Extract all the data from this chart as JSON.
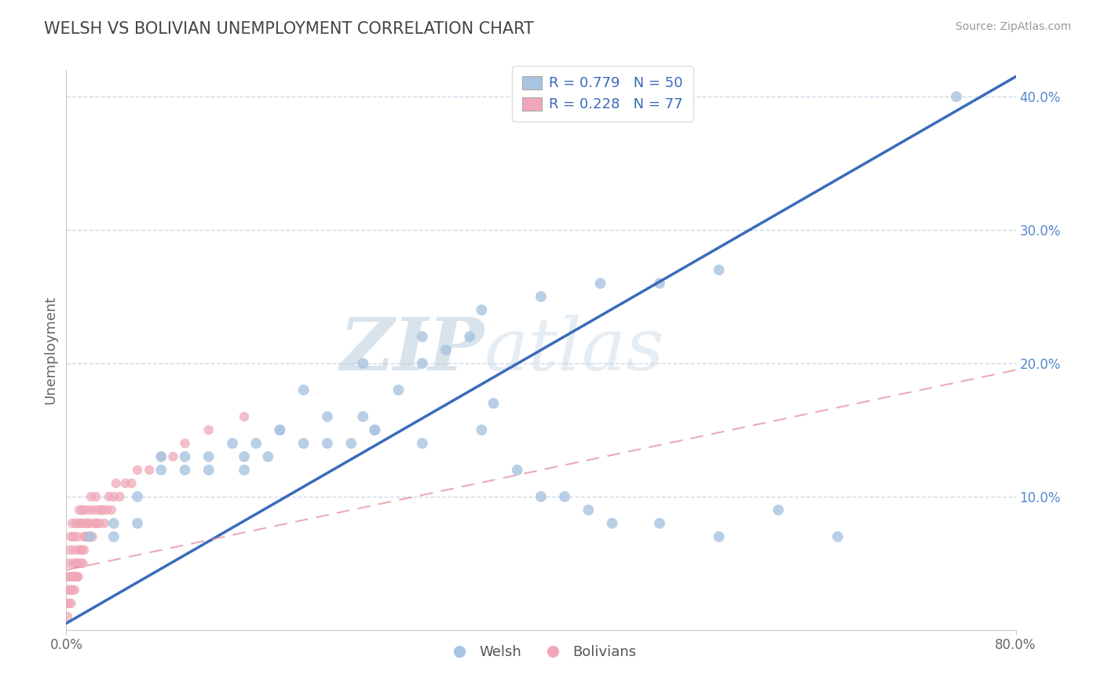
{
  "title": "WELSH VS BOLIVIAN UNEMPLOYMENT CORRELATION CHART",
  "source": "Source: ZipAtlas.com",
  "ylabel": "Unemployment",
  "xlim": [
    0,
    0.8
  ],
  "ylim": [
    0,
    0.42
  ],
  "welsh_color": "#a8c4e0",
  "bolivian_color": "#f0a8b8",
  "welsh_line_color": "#3a6bbb",
  "bolivian_line_color": "#e08898",
  "legend_R_welsh": "R = 0.779",
  "legend_N_welsh": "N = 50",
  "legend_R_bolivian": "R = 0.228",
  "legend_N_bolivian": "N = 77",
  "welsh_label": "Welsh",
  "bolivian_label": "Bolivians",
  "watermark_zip": "ZIP",
  "watermark_atlas": "atlas",
  "title_color": "#444444",
  "source_color": "#999999",
  "grid_color": "#d0d8e8",
  "legend_text_color_blue": "#3a6bbb",
  "legend_text_color_dark": "#333333",
  "welsh_scatter_x": [
    0.02,
    0.04,
    0.06,
    0.08,
    0.1,
    0.12,
    0.14,
    0.15,
    0.16,
    0.17,
    0.18,
    0.2,
    0.22,
    0.24,
    0.25,
    0.26,
    0.28,
    0.3,
    0.32,
    0.34,
    0.35,
    0.36,
    0.38,
    0.4,
    0.42,
    0.44,
    0.46,
    0.5,
    0.55,
    0.6,
    0.65,
    0.55,
    0.5,
    0.45,
    0.4,
    0.35,
    0.3,
    0.25,
    0.2,
    0.15,
    0.12,
    0.1,
    0.08,
    0.06,
    0.04,
    0.18,
    0.22,
    0.26,
    0.3,
    0.75
  ],
  "welsh_scatter_y": [
    0.07,
    0.08,
    0.1,
    0.12,
    0.12,
    0.13,
    0.14,
    0.12,
    0.14,
    0.13,
    0.15,
    0.14,
    0.16,
    0.14,
    0.16,
    0.15,
    0.18,
    0.2,
    0.21,
    0.22,
    0.15,
    0.17,
    0.12,
    0.1,
    0.1,
    0.09,
    0.08,
    0.08,
    0.07,
    0.09,
    0.07,
    0.27,
    0.26,
    0.26,
    0.25,
    0.24,
    0.22,
    0.2,
    0.18,
    0.13,
    0.12,
    0.13,
    0.13,
    0.08,
    0.07,
    0.15,
    0.14,
    0.15,
    0.14,
    0.4
  ],
  "bolivian_scatter_x": [
    0.001,
    0.001,
    0.002,
    0.002,
    0.003,
    0.003,
    0.004,
    0.004,
    0.005,
    0.005,
    0.006,
    0.006,
    0.007,
    0.007,
    0.008,
    0.008,
    0.009,
    0.009,
    0.01,
    0.01,
    0.011,
    0.011,
    0.012,
    0.012,
    0.013,
    0.013,
    0.014,
    0.014,
    0.015,
    0.015,
    0.016,
    0.017,
    0.018,
    0.019,
    0.02,
    0.021,
    0.022,
    0.023,
    0.024,
    0.025,
    0.026,
    0.027,
    0.028,
    0.03,
    0.032,
    0.034,
    0.036,
    0.038,
    0.04,
    0.042,
    0.045,
    0.05,
    0.055,
    0.06,
    0.07,
    0.08,
    0.09,
    0.1,
    0.12,
    0.15,
    0.001,
    0.002,
    0.003,
    0.004,
    0.005,
    0.006,
    0.007,
    0.008,
    0.009,
    0.01,
    0.011,
    0.012,
    0.015,
    0.018,
    0.02,
    0.025,
    0.03
  ],
  "bolivian_scatter_y": [
    0.02,
    0.04,
    0.03,
    0.05,
    0.04,
    0.06,
    0.03,
    0.07,
    0.04,
    0.08,
    0.05,
    0.07,
    0.04,
    0.06,
    0.05,
    0.08,
    0.04,
    0.07,
    0.05,
    0.08,
    0.06,
    0.09,
    0.05,
    0.08,
    0.06,
    0.09,
    0.05,
    0.08,
    0.06,
    0.09,
    0.07,
    0.08,
    0.07,
    0.09,
    0.08,
    0.1,
    0.07,
    0.09,
    0.08,
    0.1,
    0.08,
    0.09,
    0.08,
    0.09,
    0.08,
    0.09,
    0.1,
    0.09,
    0.1,
    0.11,
    0.1,
    0.11,
    0.11,
    0.12,
    0.12,
    0.13,
    0.13,
    0.14,
    0.15,
    0.16,
    0.01,
    0.02,
    0.03,
    0.02,
    0.03,
    0.04,
    0.03,
    0.04,
    0.05,
    0.04,
    0.05,
    0.06,
    0.07,
    0.08,
    0.07,
    0.08,
    0.09
  ],
  "welsh_trend_x": [
    0.0,
    0.8
  ],
  "welsh_trend_y": [
    0.005,
    0.415
  ],
  "bolivian_trend_x": [
    0.0,
    0.8
  ],
  "bolivian_trend_y": [
    0.045,
    0.195
  ]
}
